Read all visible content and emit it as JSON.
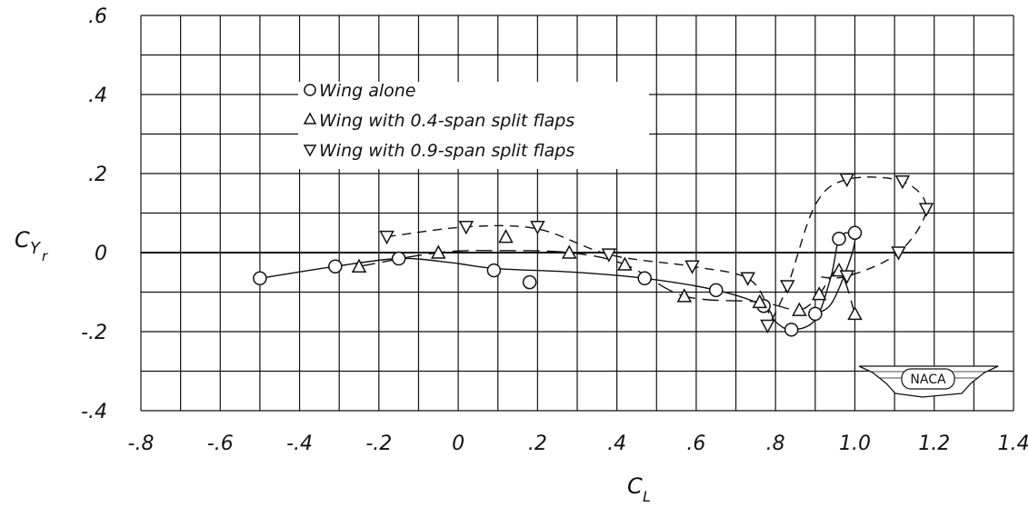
{
  "chart_data": {
    "type": "scatter",
    "title": "",
    "xlabel": "C",
    "xlabel_sub": "L",
    "ylabel": "C",
    "ylabel_sub": "Y",
    "ylabel_subsub": "r",
    "xlim": [
      -0.8,
      1.4
    ],
    "ylim": [
      -0.04,
      0.06
    ],
    "grid": true,
    "legend_placement": "top-left-center",
    "x_ticks": [
      {
        "value": -0.8,
        "label": "-.8"
      },
      {
        "value": -0.6,
        "label": "-.6"
      },
      {
        "value": -0.4,
        "label": "-.4"
      },
      {
        "value": -0.2,
        "label": "-.2"
      },
      {
        "value": 0.0,
        "label": "0"
      },
      {
        "value": 0.2,
        "label": ".2"
      },
      {
        "value": 0.4,
        "label": ".4"
      },
      {
        "value": 0.6,
        "label": ".6"
      },
      {
        "value": 0.8,
        "label": ".8"
      },
      {
        "value": 1.0,
        "label": "1.0"
      },
      {
        "value": 1.2,
        "label": "1.2"
      },
      {
        "value": 1.4,
        "label": "1.4"
      }
    ],
    "y_ticks": [
      {
        "value": 0.06,
        "label": ".6"
      },
      {
        "value": 0.04,
        "label": ".4"
      },
      {
        "value": 0.02,
        "label": ".2"
      },
      {
        "value": 0.0,
        "label": "0"
      },
      {
        "value": -0.02,
        "label": "-.2"
      },
      {
        "value": -0.04,
        "label": "-.4"
      }
    ],
    "series": [
      {
        "name": "Wing alone",
        "marker": "circle",
        "line": "solid",
        "points": [
          [
            -0.5,
            -0.0065
          ],
          [
            -0.31,
            -0.0035
          ],
          [
            -0.15,
            -0.0015
          ],
          [
            0.09,
            -0.0045
          ],
          [
            0.18,
            -0.0075
          ],
          [
            0.47,
            -0.0065
          ],
          [
            0.65,
            -0.0095
          ],
          [
            0.77,
            -0.0135
          ],
          [
            0.84,
            -0.0195
          ],
          [
            0.9,
            -0.0155
          ],
          [
            0.96,
            0.0035
          ],
          [
            1.0,
            0.005
          ]
        ],
        "curve": [
          [
            -0.5,
            -0.0065
          ],
          [
            -0.31,
            -0.0035
          ],
          [
            -0.15,
            -0.0015
          ],
          [
            -0.02,
            -0.0025
          ],
          [
            0.09,
            -0.004
          ],
          [
            0.3,
            -0.005
          ],
          [
            0.47,
            -0.0065
          ],
          [
            0.65,
            -0.0095
          ],
          [
            0.77,
            -0.0135
          ],
          [
            0.8,
            -0.0175
          ],
          [
            0.84,
            -0.0195
          ],
          [
            0.9,
            -0.017
          ],
          [
            0.94,
            -0.006
          ],
          [
            0.96,
            0.0035
          ],
          [
            0.99,
            0.005
          ],
          [
            1.0,
            0.003
          ],
          [
            0.98,
            -0.004
          ],
          [
            0.94,
            -0.013
          ],
          [
            0.9,
            -0.0155
          ]
        ]
      },
      {
        "name": "Wing with 0.4-span split flaps",
        "marker": "triangle-up",
        "line": "long-dash",
        "points": [
          [
            -0.25,
            -0.0035
          ],
          [
            -0.05,
            0.0
          ],
          [
            0.12,
            0.004
          ],
          [
            0.28,
            0.0
          ],
          [
            0.42,
            -0.003
          ],
          [
            0.57,
            -0.011
          ],
          [
            0.76,
            -0.0125
          ],
          [
            0.86,
            -0.0145
          ],
          [
            0.91,
            -0.0105
          ],
          [
            0.96,
            -0.0045
          ],
          [
            1.0,
            -0.0155
          ]
        ],
        "curve": [
          [
            -0.25,
            -0.0035
          ],
          [
            -0.05,
            0.0
          ],
          [
            0.1,
            0.0005
          ],
          [
            0.28,
            0.0
          ],
          [
            0.42,
            -0.003
          ],
          [
            0.57,
            -0.011
          ],
          [
            0.76,
            -0.0125
          ],
          [
            0.86,
            -0.0145
          ],
          [
            0.91,
            -0.0105
          ],
          [
            0.96,
            -0.0045
          ],
          [
            1.0,
            -0.0155
          ]
        ]
      },
      {
        "name": "Wing with 0.9-span split flaps",
        "marker": "triangle-down",
        "line": "short-dash",
        "points": [
          [
            -0.18,
            0.004
          ],
          [
            0.02,
            0.0065
          ],
          [
            0.2,
            0.0065
          ],
          [
            0.38,
            -0.0005
          ],
          [
            0.59,
            -0.0035
          ],
          [
            0.73,
            -0.0065
          ],
          [
            0.78,
            -0.0185
          ],
          [
            0.83,
            -0.0085
          ],
          [
            0.98,
            0.0185
          ],
          [
            1.12,
            0.018
          ],
          [
            1.18,
            0.011
          ],
          [
            1.11,
            0.0
          ],
          [
            0.98,
            -0.006
          ]
        ],
        "curve": [
          [
            -0.18,
            0.004
          ],
          [
            0.02,
            0.0065
          ],
          [
            0.2,
            0.006
          ],
          [
            0.38,
            -0.0005
          ],
          [
            0.59,
            -0.0035
          ],
          [
            0.73,
            -0.0065
          ],
          [
            0.78,
            -0.014
          ],
          [
            0.78,
            -0.0185
          ],
          [
            0.83,
            -0.0085
          ],
          [
            0.9,
            0.012
          ],
          [
            0.98,
            0.0185
          ],
          [
            1.12,
            0.018
          ],
          [
            1.18,
            0.011
          ],
          [
            1.11,
            0.0
          ],
          [
            0.98,
            -0.006
          ],
          [
            0.9,
            -0.006
          ]
        ]
      }
    ],
    "legend": [
      "Wing alone",
      "Wing with 0.4-span split flaps",
      "Wing with 0.9-span split flaps"
    ],
    "logo_text": "NACA"
  }
}
